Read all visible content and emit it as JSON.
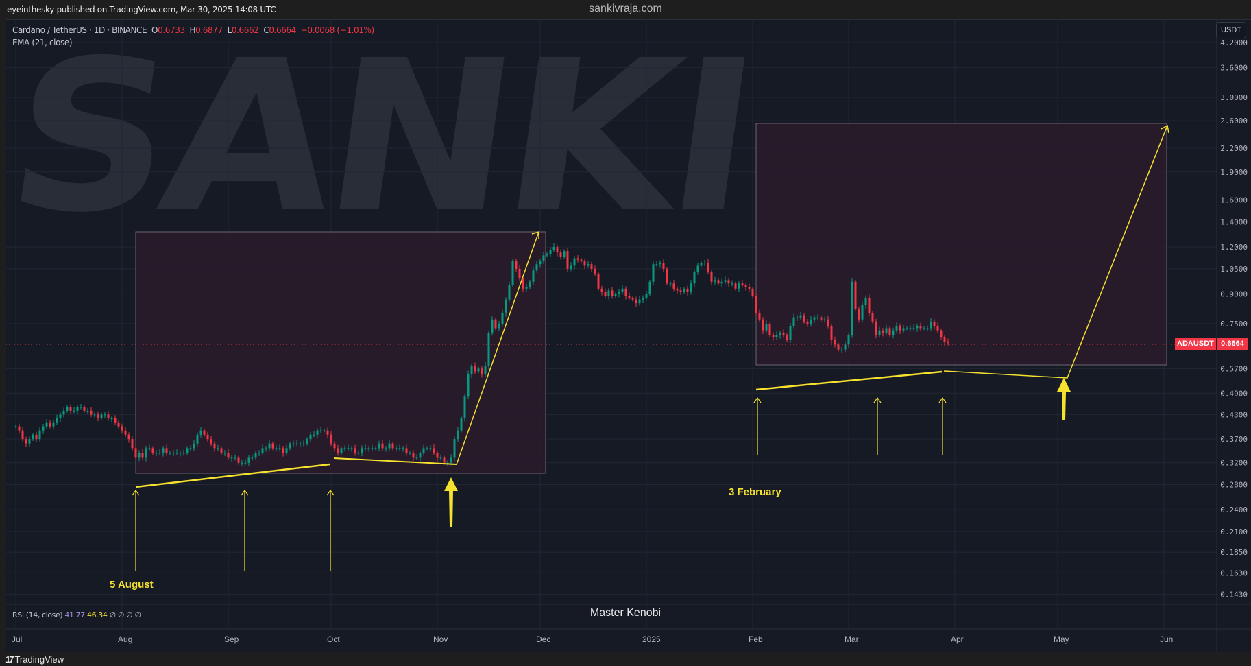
{
  "header": {
    "publisher": "eyeinthesky published on TradingView.com, Mar 30, 2025 14:08 UTC",
    "site": "sankivraja.com"
  },
  "legend": {
    "symbol": "Cardano / TetherUS · 1D · BINANCE",
    "open_label": "O",
    "open": "0.6733",
    "high_label": "H",
    "high": "0.6877",
    "low_label": "L",
    "low": "0.6662",
    "close_label": "C",
    "close": "0.6664",
    "change": "−0.0068 (−1.01%)",
    "ema": "EMA (21, close)"
  },
  "currency_button": "USDT",
  "price_tag": {
    "symbol": "ADAUSDT",
    "price": "0.6664"
  },
  "watermark": "SANKI",
  "annotations": {
    "aug": "5 August",
    "feb": "3 February",
    "author": "Master Kenobi"
  },
  "rsi": {
    "label": "RSI (14, close)",
    "v1": "41.77",
    "v2": "46.34",
    "rest": "∅ ∅ ∅ ∅"
  },
  "footer": {
    "logo": "TradingView"
  },
  "colors": {
    "up": "#089981",
    "down": "#f23645",
    "drawing": "#f5e12e",
    "box_fill": "#2a1c2b",
    "background": "#161a25"
  },
  "chart_data": {
    "type": "candlestick",
    "scale": "log",
    "date_range": [
      "2024-07-01",
      "2025-03-30"
    ],
    "closes": [
      0.4,
      0.39,
      0.37,
      0.36,
      0.37,
      0.38,
      0.37,
      0.39,
      0.4,
      0.41,
      0.4,
      0.41,
      0.42,
      0.43,
      0.44,
      0.45,
      0.44,
      0.44,
      0.45,
      0.45,
      0.44,
      0.44,
      0.43,
      0.43,
      0.42,
      0.43,
      0.43,
      0.42,
      0.42,
      0.41,
      0.4,
      0.39,
      0.38,
      0.37,
      0.35,
      0.33,
      0.34,
      0.33,
      0.35,
      0.35,
      0.34,
      0.34,
      0.34,
      0.35,
      0.34,
      0.34,
      0.34,
      0.34,
      0.34,
      0.34,
      0.35,
      0.35,
      0.36,
      0.38,
      0.39,
      0.38,
      0.37,
      0.36,
      0.35,
      0.35,
      0.34,
      0.34,
      0.33,
      0.33,
      0.33,
      0.32,
      0.32,
      0.32,
      0.33,
      0.33,
      0.34,
      0.34,
      0.35,
      0.35,
      0.36,
      0.35,
      0.35,
      0.35,
      0.34,
      0.35,
      0.36,
      0.36,
      0.36,
      0.36,
      0.36,
      0.37,
      0.38,
      0.38,
      0.39,
      0.39,
      0.39,
      0.38,
      0.36,
      0.35,
      0.34,
      0.35,
      0.35,
      0.35,
      0.35,
      0.34,
      0.34,
      0.35,
      0.35,
      0.35,
      0.35,
      0.35,
      0.36,
      0.35,
      0.35,
      0.36,
      0.35,
      0.35,
      0.35,
      0.35,
      0.34,
      0.34,
      0.33,
      0.33,
      0.34,
      0.35,
      0.35,
      0.35,
      0.34,
      0.33,
      0.33,
      0.32,
      0.32,
      0.33,
      0.37,
      0.39,
      0.42,
      0.48,
      0.55,
      0.58,
      0.56,
      0.57,
      0.55,
      0.58,
      0.71,
      0.77,
      0.73,
      0.75,
      0.8,
      0.87,
      0.95,
      1.1,
      1.05,
      0.99,
      0.93,
      0.94,
      0.97,
      1.04,
      1.08,
      1.1,
      1.14,
      1.15,
      1.18,
      1.2,
      1.16,
      1.13,
      1.17,
      1.05,
      1.07,
      1.12,
      1.11,
      1.1,
      1.07,
      1.08,
      1.05,
      1.02,
      0.93,
      0.91,
      0.89,
      0.92,
      0.89,
      0.9,
      0.91,
      0.93,
      0.89,
      0.88,
      0.87,
      0.85,
      0.87,
      0.88,
      0.9,
      0.97,
      1.08,
      1.08,
      1.09,
      1.05,
      0.96,
      0.96,
      0.93,
      0.92,
      0.91,
      0.93,
      0.91,
      0.96,
      1.03,
      1.07,
      1.09,
      1.09,
      1.03,
      0.97,
      0.98,
      0.96,
      0.97,
      0.98,
      0.96,
      0.96,
      0.93,
      0.96,
      0.95,
      0.94,
      0.93,
      0.89,
      0.8,
      0.77,
      0.72,
      0.75,
      0.7,
      0.69,
      0.7,
      0.71,
      0.7,
      0.68,
      0.74,
      0.78,
      0.78,
      0.79,
      0.76,
      0.75,
      0.77,
      0.78,
      0.78,
      0.77,
      0.77,
      0.74,
      0.68,
      0.66,
      0.64,
      0.64,
      0.66,
      0.7,
      0.97,
      0.82,
      0.77,
      0.84,
      0.88,
      0.8,
      0.76,
      0.7,
      0.72,
      0.71,
      0.73,
      0.7,
      0.72,
      0.74,
      0.72,
      0.73,
      0.73,
      0.73,
      0.73,
      0.74,
      0.73,
      0.73,
      0.73,
      0.76,
      0.74,
      0.72,
      0.69,
      0.67,
      0.6664
    ],
    "last_price": 0.6664,
    "price_ticks": [
      "4.2000",
      "3.6000",
      "3.0000",
      "2.6000",
      "2.2000",
      "1.9000",
      "1.6000",
      "1.4000",
      "1.2000",
      "1.0500",
      "0.9000",
      "0.7500",
      "0.5700",
      "0.4900",
      "0.4300",
      "0.3700",
      "0.3200",
      "0.2800",
      "0.2400",
      "0.2100",
      "0.1850",
      "0.1630",
      "0.1430"
    ],
    "time_ticks": [
      {
        "label": "Jul",
        "date": "2024-07-01"
      },
      {
        "label": "Aug",
        "date": "2024-08-01"
      },
      {
        "label": "Sep",
        "date": "2024-09-01"
      },
      {
        "label": "Oct",
        "date": "2024-10-01"
      },
      {
        "label": "Nov",
        "date": "2024-11-01"
      },
      {
        "label": "Dec",
        "date": "2024-12-01"
      },
      {
        "label": "2025",
        "date": "2025-01-01"
      },
      {
        "label": "Feb",
        "date": "2025-02-01"
      },
      {
        "label": "Mar",
        "date": "2025-03-01"
      },
      {
        "label": "Apr",
        "date": "2025-04-01"
      },
      {
        "label": "May",
        "date": "2025-05-01"
      },
      {
        "label": "Jun",
        "date": "2025-06-01"
      }
    ],
    "grid": true
  }
}
